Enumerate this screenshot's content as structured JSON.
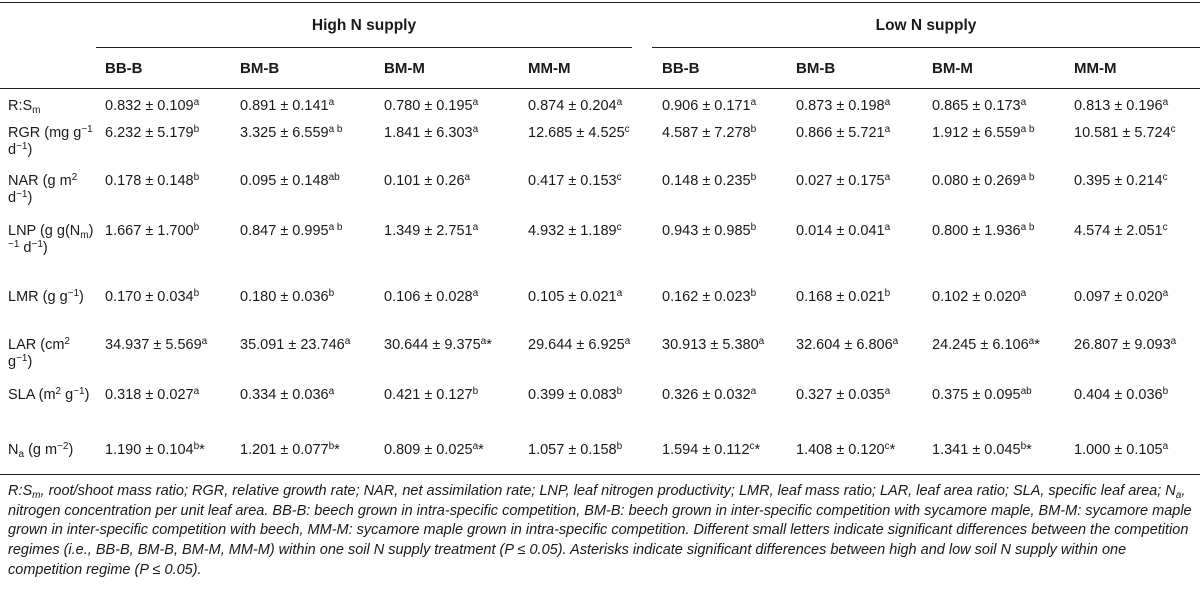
{
  "groups": {
    "high": "High N supply",
    "low": "Low N supply"
  },
  "columns": [
    "BB-B",
    "BM-B",
    "BM-M",
    "MM-M",
    "BB-B",
    "BM-B",
    "BM-M",
    "MM-M"
  ],
  "rows": [
    {
      "label": "R:S<sub>m</sub>",
      "cells": [
        "0.832 ± 0.109<sup>a</sup>",
        "0.891 ± 0.141<sup>a</sup>",
        "0.780 ± 0.195<sup>a</sup>",
        "0.874 ± 0.204<sup>a</sup>",
        "0.906 ± 0.171<sup>a</sup>",
        "0.873 ± 0.198<sup>a</sup>",
        "0.865 ± 0.173<sup>a</sup>",
        "0.813 ± 0.196<sup>a</sup>"
      ]
    },
    {
      "label": "RGR (mg g<sup>−1</sup> d<sup>−1</sup>)",
      "cells": [
        "6.232 ± 5.179<sup>b</sup>",
        "3.325 ± 6.559<sup>a b</sup>",
        "1.841 ± 6.303<sup>a</sup>",
        "12.685 ± 4.525<sup>c</sup>",
        "4.587 ± 7.278<sup>b</sup>",
        "0.866 ± 5.721<sup>a</sup>",
        "1.912 ± 6.559<sup>a b</sup>",
        "10.581 ± 5.724<sup>c</sup>"
      ]
    },
    {
      "label": "NAR (g m<sup>2</sup> d<sup>−1</sup>)",
      "cells": [
        "0.178 ± 0.148<sup>b</sup>",
        "0.095 ± 0.148<sup>ab</sup>",
        "0.101 ± 0.26<sup>a</sup>",
        "0.417 ± 0.153<sup>c</sup>",
        "0.148 ± 0.235<sup>b</sup>",
        "0.027 ± 0.175<sup>a</sup>",
        "0.080 ± 0.269<sup>a b</sup>",
        "0.395 ± 0.214<sup>c</sup>"
      ]
    },
    {
      "label": "LNP (g g(N<sub>m</sub>)<sup>−1</sup> d<sup>−1</sup>)",
      "cells": [
        "1.667 ± 1.700<sup>b</sup>",
        "0.847 ± 0.995<sup>a b</sup>",
        "1.349 ± 2.751<sup>a</sup>",
        "4.932 ± 1.189<sup>c</sup>",
        "0.943 ± 0.985<sup>b</sup>",
        "0.014 ± 0.041<sup>a</sup>",
        "0.800 ± 1.936<sup>a b</sup>",
        "4.574 ± 2.051<sup>c</sup>"
      ]
    },
    {
      "label": "LMR (g g<sup>−1</sup>)",
      "cells": [
        "0.170 ± 0.034<sup>b</sup>",
        "0.180 ± 0.036<sup>b</sup>",
        "0.106 ± 0.028<sup>a</sup>",
        "0.105 ± 0.021<sup>a</sup>",
        "0.162 ± 0.023<sup>b</sup>",
        "0.168 ± 0.021<sup>b</sup>",
        "0.102 ± 0.020<sup>a</sup>",
        "0.097 ± 0.020<sup>a</sup>"
      ]
    },
    {
      "label": "LAR (cm<sup>2</sup> g<sup>−1</sup>)",
      "cells": [
        "34.937 ± 5.569<sup>a</sup>",
        "35.091 ± 23.746<sup>a</sup>",
        "30.644 ± 9.375<sup>a</sup>*",
        "29.644 ± 6.925<sup>a</sup>",
        "30.913 ± 5.380<sup>a</sup>",
        "32.604 ± 6.806<sup>a</sup>",
        "24.245 ± 6.106<sup>a</sup>*",
        "26.807 ± 9.093<sup>a</sup>"
      ]
    },
    {
      "label": "SLA (m<sup>2</sup> g<sup>−1</sup>)",
      "cells": [
        "0.318 ± 0.027<sup>a</sup>",
        "0.334 ± 0.036<sup>a</sup>",
        "0.421 ± 0.127<sup>b</sup>",
        "0.399 ± 0.083<sup>b</sup>",
        "0.326 ± 0.032<sup>a</sup>",
        "0.327 ± 0.035<sup>a</sup>",
        "0.375 ± 0.095<sup>ab</sup>",
        "0.404 ± 0.036<sup>b</sup>"
      ]
    },
    {
      "label": "N<sub>a</sub> (g m<sup>−2</sup>)",
      "cells": [
        "1.190 ± 0.104<sup>b</sup>*",
        "1.201 ± 0.077<sup>b</sup>*",
        "0.809 ± 0.025<sup>a</sup>*",
        "1.057 ± 0.158<sup>b</sup>",
        "1.594 ± 0.112<sup>c</sup>*",
        "1.408 ± 0.120<sup>c</sup>*",
        "1.341 ± 0.045<sup>b</sup>*",
        "1.000 ± 0.105<sup>a</sup>"
      ]
    }
  ],
  "footnote": "<i>R:S<sub>m</sub>, root/shoot mass ratio; RGR, relative growth rate; NAR, net assimilation rate; LNP, leaf nitrogen productivity; LMR, leaf mass ratio; LAR, leaf area ratio; SLA, specific leaf area; N<sub>a</sub>, nitrogen concentration per unit leaf area. BB-B: beech grown in intra-specific competition, BM-B: beech grown in inter-specific competition with sycamore maple, BM-M: sycamore maple grown in inter-specific competition with beech, MM-M: sycamore maple grown in intra-specific competition. Different small letters indicate significant differences between the competition regimes (i.e., BB-B, BM-B, BM-M, MM-M) within one soil N supply treatment (P ≤ 0.05). Asterisks indicate significant differences between high and low soil N supply within one competition regime (P ≤ 0.05).</i>"
}
